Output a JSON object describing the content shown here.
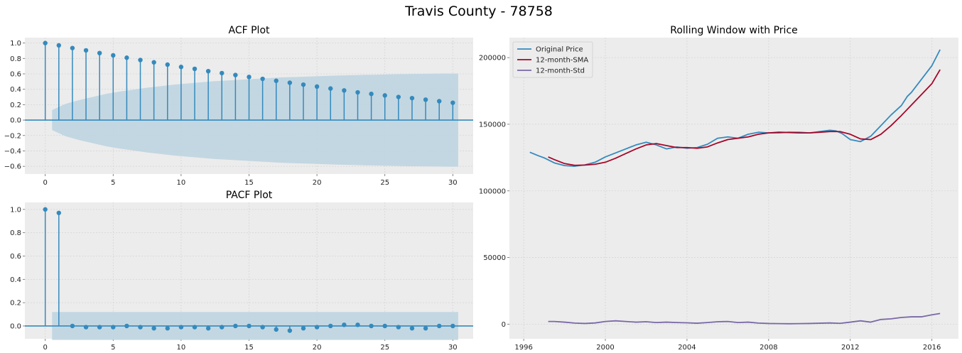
{
  "figure": {
    "suptitle": "Travis County - 78758"
  },
  "colors": {
    "axes_bg": "#ececec",
    "grid": "#d5d5d5",
    "stem": "#348abd",
    "conf_band": "#bcd3e0",
    "zero_line": "#348abd",
    "original": "#348abd",
    "sma": "#a60628",
    "std": "#7a68a6"
  },
  "chart_data": [
    {
      "id": "acf",
      "type": "stem",
      "title": "ACF Plot",
      "xlim": [
        -1.5,
        31.5
      ],
      "ylim": [
        -0.7,
        1.07
      ],
      "xticks": [
        0,
        5,
        10,
        15,
        20,
        25,
        30
      ],
      "yticks": [
        -0.6,
        -0.4,
        -0.2,
        0.0,
        0.2,
        0.4,
        0.6,
        0.8,
        1.0
      ],
      "ytick_labels": [
        "−0.6",
        "−0.4",
        "−0.2",
        "0.0",
        "0.2",
        "0.4",
        "0.6",
        "0.8",
        "1.0"
      ],
      "grid": true,
      "lags": [
        0,
        1,
        2,
        3,
        4,
        5,
        6,
        7,
        8,
        9,
        10,
        11,
        12,
        13,
        14,
        15,
        16,
        17,
        18,
        19,
        20,
        21,
        22,
        23,
        24,
        25,
        26,
        27,
        28,
        29,
        30
      ],
      "values": [
        1.0,
        0.97,
        0.935,
        0.905,
        0.87,
        0.84,
        0.81,
        0.78,
        0.75,
        0.72,
        0.69,
        0.665,
        0.635,
        0.61,
        0.585,
        0.56,
        0.535,
        0.51,
        0.485,
        0.46,
        0.435,
        0.41,
        0.385,
        0.36,
        0.34,
        0.32,
        0.3,
        0.285,
        0.265,
        0.245,
        0.225
      ],
      "confint": {
        "start": 0.5,
        "end": 30.4,
        "upper": [
          0.13,
          0.21,
          0.26,
          0.3,
          0.34,
          0.37,
          0.395,
          0.42,
          0.44,
          0.46,
          0.475,
          0.49,
          0.505,
          0.515,
          0.525,
          0.535,
          0.545,
          0.555,
          0.56,
          0.565,
          0.572,
          0.578,
          0.583,
          0.587,
          0.59,
          0.594,
          0.597,
          0.6,
          0.602,
          0.604,
          0.605
        ]
      }
    },
    {
      "id": "pacf",
      "type": "stem",
      "title": "PACF Plot",
      "xlim": [
        -1.5,
        31.5
      ],
      "ylim": [
        -0.11,
        1.06
      ],
      "xticks": [
        0,
        5,
        10,
        15,
        20,
        25,
        30
      ],
      "yticks": [
        0.0,
        0.2,
        0.4,
        0.6,
        0.8,
        1.0
      ],
      "ytick_labels": [
        "0.0",
        "0.2",
        "0.4",
        "0.6",
        "0.8",
        "1.0"
      ],
      "grid": true,
      "lags": [
        0,
        1,
        2,
        3,
        4,
        5,
        6,
        7,
        8,
        9,
        10,
        11,
        12,
        13,
        14,
        15,
        16,
        17,
        18,
        19,
        20,
        21,
        22,
        23,
        24,
        25,
        26,
        27,
        28,
        29,
        30
      ],
      "values": [
        1.0,
        0.97,
        0.0,
        -0.01,
        -0.01,
        -0.01,
        0.0,
        -0.01,
        -0.02,
        -0.02,
        -0.01,
        -0.01,
        -0.02,
        -0.01,
        0.0,
        0.0,
        -0.01,
        -0.03,
        -0.04,
        -0.02,
        -0.01,
        0.0,
        0.01,
        0.01,
        0.0,
        0.0,
        -0.01,
        -0.02,
        -0.02,
        0.0,
        0.0
      ],
      "confint": {
        "start": 0.5,
        "end": 30.4,
        "halfwidth": 0.12
      }
    },
    {
      "id": "rolling",
      "type": "line",
      "title": "Rolling Window with Price",
      "xlim": [
        1995.3,
        2017.3
      ],
      "ylim": [
        -11000,
        215000
      ],
      "xticks": [
        1996,
        2000,
        2004,
        2008,
        2012,
        2016
      ],
      "yticks": [
        0,
        50000,
        100000,
        150000,
        200000
      ],
      "grid": true,
      "legend_position": "upper-left",
      "series": [
        {
          "name": "Original Price",
          "x": [
            1996.3,
            1996.7,
            1997.0,
            1997.5,
            1998.0,
            1998.5,
            1999.0,
            1999.5,
            2000.0,
            2000.5,
            2001.0,
            2001.5,
            2002.0,
            2002.5,
            2003.0,
            2003.5,
            2004.0,
            2004.5,
            2005.0,
            2005.5,
            2006.0,
            2006.5,
            2007.0,
            2007.5,
            2008.0,
            2008.5,
            2009.0,
            2009.5,
            2010.0,
            2010.5,
            2011.0,
            2011.3,
            2011.6,
            2012.0,
            2012.5,
            2013.0,
            2013.5,
            2014.0,
            2014.5,
            2014.8,
            2015.0,
            2015.5,
            2016.0,
            2016.4
          ],
          "values": [
            129000,
            126500,
            124800,
            121000,
            119000,
            118500,
            119500,
            121500,
            125500,
            128500,
            131500,
            134500,
            136500,
            134500,
            131500,
            133000,
            132000,
            132500,
            135000,
            139500,
            140500,
            139500,
            142500,
            144000,
            143500,
            143500,
            144000,
            144000,
            143500,
            144500,
            145500,
            145000,
            143000,
            138500,
            137000,
            141000,
            149000,
            157000,
            164000,
            171000,
            174000,
            184000,
            194000,
            206000
          ]
        },
        {
          "name": "12-month-SMA",
          "x": [
            1997.2,
            1997.5,
            1998.0,
            1998.5,
            1999.0,
            1999.5,
            2000.0,
            2000.5,
            2001.0,
            2001.5,
            2002.0,
            2002.5,
            2003.0,
            2003.5,
            2004.0,
            2004.5,
            2005.0,
            2005.5,
            2006.0,
            2006.5,
            2007.0,
            2007.5,
            2008.0,
            2008.5,
            2009.0,
            2009.5,
            2010.0,
            2010.5,
            2011.0,
            2011.5,
            2012.0,
            2012.5,
            2013.0,
            2013.5,
            2014.0,
            2014.5,
            2015.0,
            2015.5,
            2016.0,
            2016.4
          ],
          "values": [
            125500,
            123500,
            120500,
            119200,
            119400,
            120000,
            121500,
            124500,
            128000,
            131500,
            134500,
            135500,
            134000,
            132500,
            132500,
            132000,
            133000,
            136000,
            138500,
            139500,
            140500,
            142500,
            143500,
            144000,
            143800,
            143500,
            143500,
            144000,
            144500,
            144500,
            142500,
            139000,
            138500,
            142500,
            149000,
            156500,
            164500,
            172500,
            180500,
            191000
          ]
        },
        {
          "name": "12-month-Std",
          "x": [
            1997.2,
            1997.5,
            1998.0,
            1998.5,
            1999.0,
            1999.5,
            2000.0,
            2000.5,
            2001.0,
            2001.5,
            2002.0,
            2002.5,
            2003.0,
            2003.5,
            2004.0,
            2004.5,
            2005.0,
            2005.5,
            2006.0,
            2006.5,
            2007.0,
            2007.5,
            2008.0,
            2008.5,
            2009.0,
            2009.5,
            2010.0,
            2010.5,
            2011.0,
            2011.5,
            2012.0,
            2012.5,
            2013.0,
            2013.5,
            2014.0,
            2014.5,
            2015.0,
            2015.5,
            2016.0,
            2016.4
          ],
          "values": [
            2000,
            2000,
            1500,
            800,
            500,
            900,
            2000,
            2500,
            2000,
            1500,
            1800,
            1200,
            1500,
            1200,
            1000,
            700,
            1200,
            1800,
            2000,
            1200,
            1500,
            800,
            500,
            400,
            300,
            400,
            500,
            700,
            900,
            600,
            1500,
            2500,
            1500,
            3500,
            4000,
            5000,
            5500,
            5500,
            7000,
            8000
          ]
        }
      ]
    }
  ]
}
